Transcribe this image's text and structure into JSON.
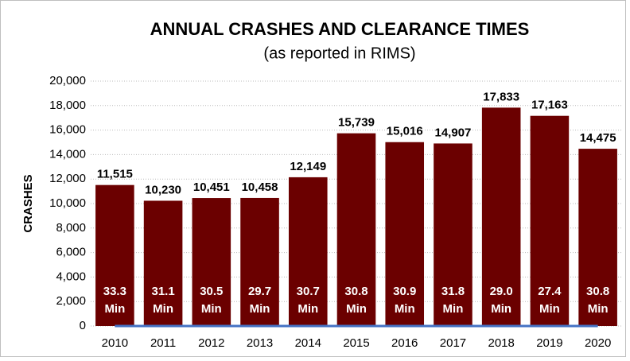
{
  "chart_data": {
    "type": "bar",
    "title": "ANNUAL CRASHES AND CLEARANCE TIMES",
    "subtitle": "(as reported in RIMS)",
    "y_label": "CRASHES",
    "categories": [
      "2010",
      "2011",
      "2012",
      "2013",
      "2014",
      "2015",
      "2016",
      "2017",
      "2018",
      "2019",
      "2020"
    ],
    "values": [
      11515,
      10230,
      10451,
      10458,
      12149,
      15739,
      15016,
      14907,
      17833,
      17163,
      14475
    ],
    "value_labels": [
      "11,515",
      "10,230",
      "10,451",
      "10,458",
      "12,149",
      "15,739",
      "15,016",
      "14,907",
      "17,833",
      "17,163",
      "14,475"
    ],
    "color": "#6b0000",
    "clearance_times": [
      33.3,
      31.1,
      30.5,
      29.7,
      30.7,
      30.8,
      30.9,
      31.8,
      29.0,
      27.4,
      30.8
    ],
    "clearance_labels": [
      "33.3",
      "31.1",
      "30.5",
      "29.7",
      "30.7",
      "30.8",
      "30.9",
      "31.8",
      "29.0",
      "27.4",
      "30.8"
    ],
    "clearance_unit": "Min",
    "ylim": [
      0,
      20000
    ],
    "yticks": [
      0,
      {
        "value": 2000,
        "label": "2,000"
      },
      {
        "value": 4000,
        "label": "4,000"
      },
      {
        "value": 6000,
        "label": "6,000"
      },
      {
        "value": 8000,
        "label": "8,000"
      },
      {
        "value": 10000,
        "label": "10,000"
      },
      {
        "value": 12000,
        "label": "12,000"
      },
      {
        "value": 14000,
        "label": "14,000"
      },
      {
        "value": 16000,
        "label": "16,000"
      },
      {
        "value": 18000,
        "label": "18,000"
      },
      {
        "value": 20000,
        "label": "20,000"
      }
    ],
    "grid": true
  }
}
